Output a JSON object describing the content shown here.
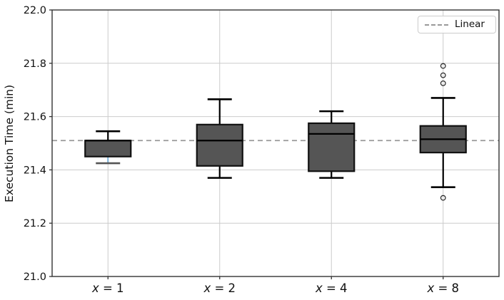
{
  "chart_data": {
    "type": "boxplot",
    "title": "",
    "ylabel": "Execution Time (min)",
    "ylim": [
      21.0,
      22.0
    ],
    "yticks": [
      21.0,
      21.2,
      21.4,
      21.6,
      21.8,
      22.0
    ],
    "ytick_labels": [
      "21.0",
      "21.2",
      "21.4",
      "21.6",
      "21.8",
      "22.0"
    ],
    "categories": [
      "x = 1",
      "x = 2",
      "x = 4",
      "x = 8"
    ],
    "grid": true,
    "legend": {
      "label": "Linear",
      "position": "upper right"
    },
    "reference_line": {
      "name": "Linear",
      "value": 21.51,
      "style": "dashed",
      "color": "#999999"
    },
    "boxes": [
      {
        "category": "x = 1",
        "whislo": 21.425,
        "q1": 21.45,
        "med": 21.51,
        "q3": 21.51,
        "whishi": 21.545,
        "fliers": [],
        "lower_whisker_color": "#85b8dc",
        "lower_cap_color": "#555555"
      },
      {
        "category": "x = 2",
        "whislo": 21.37,
        "q1": 21.415,
        "med": 21.51,
        "q3": 21.57,
        "whishi": 21.665,
        "fliers": []
      },
      {
        "category": "x = 4",
        "whislo": 21.37,
        "q1": 21.395,
        "med": 21.535,
        "q3": 21.575,
        "whishi": 21.62,
        "fliers": []
      },
      {
        "category": "x = 8",
        "whislo": 21.335,
        "q1": 21.465,
        "med": 21.515,
        "q3": 21.565,
        "whishi": 21.67,
        "fliers": [
          21.79,
          21.755,
          21.725,
          21.295
        ]
      }
    ],
    "colors": {
      "box_fill": "#555555",
      "box_edge": "#111111",
      "median": "#000000",
      "whisker": "#000000",
      "grid": "#cccccc",
      "spine": "#333333",
      "tick": "#333333",
      "text": "#111111"
    }
  }
}
